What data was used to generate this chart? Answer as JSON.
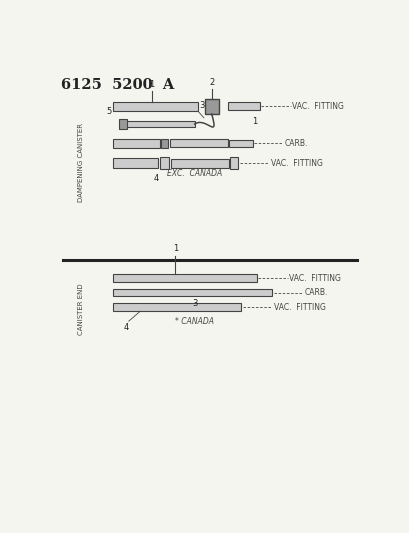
{
  "title": "6125  5200  A",
  "bg_color": "#f5f5f0",
  "fg_color": "#444444",
  "dark_color": "#222222",
  "gray_fill": "#cccccc",
  "dark_fill": "#999999",
  "top_label": "DAMPENING CANISTER",
  "top_subtitle": "EXC.  CANADA",
  "bottom_label": "CANISTER END",
  "bottom_subtitle": "* CANADA",
  "label_vac_fitting": "- - - - - VAC.  FITTING",
  "label_carb": "- - - - - CARB.",
  "label_vac_fitting2": "- - - - - VAC.  FITTING"
}
